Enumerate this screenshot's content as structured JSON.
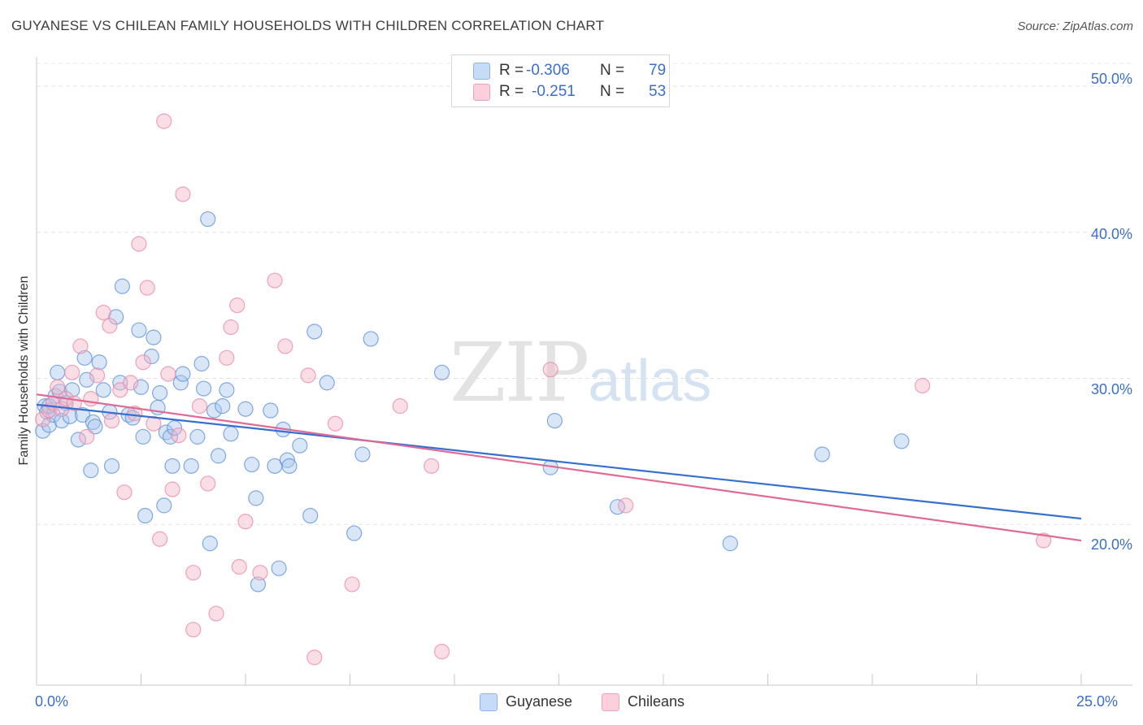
{
  "title": "GUYANESE VS CHILEAN FAMILY HOUSEHOLDS WITH CHILDREN CORRELATION CHART",
  "source": "Source: ZipAtlas.com",
  "watermark": {
    "zip": "ZIP",
    "atlas": "atlas"
  },
  "legend_top": {
    "rows": [
      {
        "r_label": "R =",
        "r_value": "-0.306",
        "n_label": "N =",
        "n_value": "79",
        "color": "#a9c8ef"
      },
      {
        "r_label": "R =",
        "r_value": "-0.251",
        "n_label": "N =",
        "n_value": "53",
        "color": "#f5b5c8"
      }
    ]
  },
  "legend_bottom": [
    {
      "label": "Guyanese",
      "color": "#a9c8ef"
    },
    {
      "label": "Chileans",
      "color": "#f5b5c8"
    }
  ],
  "chart_data": {
    "type": "scatter",
    "ylabel": "Family Households with Children",
    "x_tick_labels": [
      "0.0%",
      "25.0%"
    ],
    "y_tick_labels": [
      "50.0%",
      "40.0%",
      "30.0%",
      "20.0%"
    ],
    "y_ticks": [
      50,
      40,
      30,
      20
    ],
    "xlim": [
      0,
      25
    ],
    "ylim": [
      9.0,
      52.0
    ],
    "grid": true,
    "legend_placement": "top-center",
    "series": [
      {
        "name": "Guyanese",
        "color": "#5b8fd8",
        "fill": "#a9c8ef",
        "trend": {
          "x": [
            0,
            25
          ],
          "y": [
            28.2,
            20.4
          ],
          "color": "#3570d0"
        },
        "points": [
          [
            0.15,
            26.4
          ],
          [
            0.2,
            28.1
          ],
          [
            0.25,
            27.7
          ],
          [
            0.3,
            26.8
          ],
          [
            0.4,
            27.5
          ],
          [
            0.45,
            28.8
          ],
          [
            0.5,
            30.4
          ],
          [
            0.55,
            29.1
          ],
          [
            0.6,
            27.1
          ],
          [
            0.7,
            28.3
          ],
          [
            0.8,
            27.4
          ],
          [
            0.85,
            29.2
          ],
          [
            1.0,
            25.8
          ],
          [
            1.1,
            27.5
          ],
          [
            1.15,
            31.4
          ],
          [
            1.2,
            29.9
          ],
          [
            1.3,
            23.7
          ],
          [
            1.35,
            27.0
          ],
          [
            1.4,
            26.7
          ],
          [
            1.5,
            31.1
          ],
          [
            1.6,
            29.2
          ],
          [
            1.75,
            27.7
          ],
          [
            1.8,
            24.0
          ],
          [
            1.9,
            34.2
          ],
          [
            2.0,
            29.7
          ],
          [
            2.05,
            36.3
          ],
          [
            2.2,
            27.5
          ],
          [
            2.3,
            27.3
          ],
          [
            2.45,
            33.3
          ],
          [
            2.5,
            29.4
          ],
          [
            2.55,
            26.0
          ],
          [
            2.6,
            20.6
          ],
          [
            2.75,
            31.5
          ],
          [
            2.8,
            32.8
          ],
          [
            2.9,
            28.0
          ],
          [
            2.95,
            29.0
          ],
          [
            3.05,
            21.3
          ],
          [
            3.1,
            26.3
          ],
          [
            3.2,
            26.0
          ],
          [
            3.25,
            24.0
          ],
          [
            3.3,
            26.6
          ],
          [
            3.45,
            29.7
          ],
          [
            3.5,
            30.3
          ],
          [
            3.7,
            24.0
          ],
          [
            3.85,
            26.0
          ],
          [
            3.95,
            31.0
          ],
          [
            4.0,
            29.3
          ],
          [
            4.1,
            40.9
          ],
          [
            4.15,
            18.7
          ],
          [
            4.25,
            27.8
          ],
          [
            4.35,
            24.7
          ],
          [
            4.45,
            28.1
          ],
          [
            4.55,
            29.2
          ],
          [
            4.65,
            26.2
          ],
          [
            5.0,
            27.9
          ],
          [
            5.15,
            24.1
          ],
          [
            5.25,
            21.8
          ],
          [
            5.3,
            15.9
          ],
          [
            5.6,
            27.8
          ],
          [
            5.7,
            24.0
          ],
          [
            5.8,
            17.0
          ],
          [
            5.9,
            26.5
          ],
          [
            6.0,
            24.4
          ],
          [
            6.05,
            24.0
          ],
          [
            6.3,
            25.4
          ],
          [
            6.55,
            20.6
          ],
          [
            6.65,
            33.2
          ],
          [
            6.95,
            29.7
          ],
          [
            7.6,
            19.4
          ],
          [
            7.8,
            24.8
          ],
          [
            8.0,
            32.7
          ],
          [
            9.7,
            30.4
          ],
          [
            12.3,
            23.9
          ],
          [
            12.4,
            27.1
          ],
          [
            13.9,
            21.2
          ],
          [
            16.6,
            18.7
          ],
          [
            18.8,
            24.8
          ],
          [
            20.7,
            25.7
          ],
          [
            0.3,
            28.1
          ]
        ]
      },
      {
        "name": "Chileans",
        "color": "#e887a6",
        "fill": "#f5b5c8",
        "trend": {
          "x": [
            0,
            25
          ],
          "y": [
            28.9,
            18.9
          ],
          "color": "#e06a95"
        },
        "points": [
          [
            0.15,
            27.2
          ],
          [
            0.3,
            27.8
          ],
          [
            0.4,
            28.3
          ],
          [
            0.5,
            29.4
          ],
          [
            0.6,
            27.9
          ],
          [
            0.7,
            28.6
          ],
          [
            0.85,
            30.4
          ],
          [
            0.9,
            28.3
          ],
          [
            1.05,
            32.2
          ],
          [
            1.2,
            26.0
          ],
          [
            1.3,
            28.6
          ],
          [
            1.45,
            30.2
          ],
          [
            1.6,
            34.5
          ],
          [
            1.75,
            33.6
          ],
          [
            1.8,
            27.1
          ],
          [
            2.0,
            29.2
          ],
          [
            2.1,
            22.2
          ],
          [
            2.25,
            29.7
          ],
          [
            2.45,
            39.2
          ],
          [
            2.55,
            31.1
          ],
          [
            2.65,
            36.2
          ],
          [
            2.8,
            26.9
          ],
          [
            2.95,
            19.0
          ],
          [
            3.05,
            47.6
          ],
          [
            3.15,
            30.3
          ],
          [
            3.25,
            22.4
          ],
          [
            3.4,
            26.1
          ],
          [
            3.5,
            42.6
          ],
          [
            3.75,
            16.7
          ],
          [
            3.9,
            28.1
          ],
          [
            4.1,
            22.8
          ],
          [
            4.3,
            13.9
          ],
          [
            4.55,
            31.4
          ],
          [
            4.65,
            33.5
          ],
          [
            4.8,
            35.0
          ],
          [
            4.85,
            17.1
          ],
          [
            5.0,
            20.2
          ],
          [
            5.35,
            16.7
          ],
          [
            5.7,
            36.7
          ],
          [
            5.95,
            32.2
          ],
          [
            6.5,
            30.2
          ],
          [
            6.65,
            10.9
          ],
          [
            7.15,
            26.9
          ],
          [
            7.55,
            15.9
          ],
          [
            8.7,
            28.1
          ],
          [
            9.45,
            24.0
          ],
          [
            9.7,
            11.3
          ],
          [
            12.3,
            30.6
          ],
          [
            14.1,
            21.3
          ],
          [
            21.2,
            29.5
          ],
          [
            24.1,
            18.9
          ],
          [
            3.75,
            12.8
          ],
          [
            2.35,
            27.6
          ]
        ]
      }
    ]
  }
}
